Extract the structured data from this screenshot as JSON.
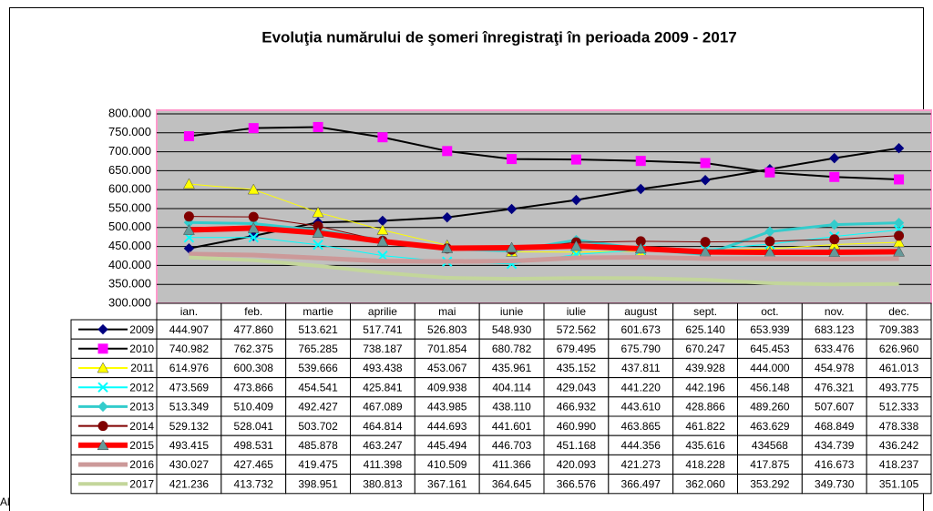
{
  "chart_data": {
    "type": "line",
    "title": "Evoluţia numărului de şomeri înregistraţi în perioada 2009 - 2017",
    "side_text": "Al",
    "categories": [
      "ian.",
      "feb.",
      "martie",
      "aprilie",
      "mai",
      "iunie",
      "iulie",
      "august",
      "sept.",
      "oct.",
      "nov.",
      "dec."
    ],
    "ylim": [
      300000,
      800000
    ],
    "yticks": [
      {
        "value": 300000,
        "label": "300.000"
      },
      {
        "value": 350000,
        "label": "350.000"
      },
      {
        "value": 400000,
        "label": "400.000"
      },
      {
        "value": 450000,
        "label": "450.000"
      },
      {
        "value": 500000,
        "label": "500.000"
      },
      {
        "value": 550000,
        "label": "550.000"
      },
      {
        "value": 600000,
        "label": "600.000"
      },
      {
        "value": 650000,
        "label": "650.000"
      },
      {
        "value": 700000,
        "label": "700.000"
      },
      {
        "value": 750000,
        "label": "750.000"
      },
      {
        "value": 800000,
        "label": "800.000"
      }
    ],
    "grid": true,
    "plot_background": "#c0c0c0",
    "series": [
      {
        "name": "2009",
        "color": "#000000",
        "marker_color": "#000080",
        "marker": "diamond",
        "line_width": 2,
        "values": [
          444907,
          477860,
          513621,
          517741,
          526803,
          548930,
          572562,
          601673,
          625140,
          653939,
          683123,
          709383
        ],
        "value_labels": [
          "444.907",
          "477.860",
          "513.621",
          "517.741",
          "526.803",
          "548.930",
          "572.562",
          "601.673",
          "625.140",
          "653.939",
          "683.123",
          "709.383"
        ]
      },
      {
        "name": "2010",
        "color": "#000000",
        "marker_color": "#ff00ff",
        "marker": "square",
        "line_width": 2,
        "values": [
          740982,
          762375,
          765285,
          738187,
          701854,
          680782,
          679495,
          675790,
          670247,
          645453,
          633476,
          626960
        ],
        "value_labels": [
          "740.982",
          "762.375",
          "765.285",
          "738.187",
          "701.854",
          "680.782",
          "679.495",
          "675.790",
          "670.247",
          "645.453",
          "633.476",
          "626.960"
        ]
      },
      {
        "name": "2011",
        "color": "#ffff00",
        "marker_color": "#ffff00",
        "marker": "triangle",
        "line_width": 1,
        "values": [
          614976,
          600308,
          539666,
          493438,
          453067,
          435961,
          435152,
          437811,
          439928,
          444000,
          454978,
          461013
        ],
        "value_labels": [
          "614.976",
          "600.308",
          "539.666",
          "493.438",
          "453.067",
          "435.961",
          "435.152",
          "437.811",
          "439.928",
          "444.000",
          "454.978",
          "461.013"
        ]
      },
      {
        "name": "2012",
        "color": "#00ffff",
        "marker_color": "#00ffff",
        "marker": "x",
        "line_width": 1,
        "values": [
          473569,
          473866,
          454541,
          425841,
          409938,
          404114,
          429043,
          441220,
          442196,
          456148,
          476321,
          493775
        ],
        "value_labels": [
          "473.569",
          "473.866",
          "454.541",
          "425.841",
          "409.938",
          "404.114",
          "429.043",
          "441.220",
          "442.196",
          "456.148",
          "476.321",
          "493.775"
        ]
      },
      {
        "name": "2013",
        "color": "#33cccc",
        "marker_color": "#33cccc",
        "marker": "diamond",
        "line_width": 3,
        "values": [
          513349,
          510409,
          492427,
          467089,
          443985,
          438110,
          466932,
          443610,
          428866,
          489260,
          507607,
          512333
        ],
        "value_labels": [
          "513.349",
          "510.409",
          "492.427",
          "467.089",
          "443.985",
          "438.110",
          "466.932",
          "443.610",
          "428.866",
          "489.260",
          "507.607",
          "512.333"
        ]
      },
      {
        "name": "2014",
        "color": "#800000",
        "marker_color": "#800000",
        "marker": "circle",
        "line_width": 1,
        "values": [
          529132,
          528041,
          503702,
          464814,
          444693,
          441601,
          460990,
          463865,
          461822,
          463629,
          468849,
          478338
        ],
        "value_labels": [
          "529.132",
          "528.041",
          "503.702",
          "464.814",
          "444.693",
          "441.601",
          "460.990",
          "463.865",
          "461.822",
          "463.629",
          "468.849",
          "478.338"
        ]
      },
      {
        "name": "2015",
        "color": "#ff0000",
        "marker_color": "#669999",
        "marker": "triangle",
        "line_width": 6,
        "values": [
          493415,
          498531,
          485878,
          463247,
          445494,
          446703,
          451168,
          444356,
          435616,
          434568,
          434739,
          436242
        ],
        "value_labels": [
          "493.415",
          "498.531",
          "485.878",
          "463.247",
          "445.494",
          "446.703",
          "451.168",
          "444.356",
          "435.616",
          "434568",
          "434.739",
          "436.242"
        ]
      },
      {
        "name": "2016",
        "color": "#cc9999",
        "marker_color": "#cc9999",
        "marker": "none",
        "line_width": 5,
        "values": [
          430027,
          427465,
          419475,
          411398,
          410509,
          411366,
          420093,
          421273,
          418228,
          417875,
          416673,
          418237
        ],
        "value_labels": [
          "430.027",
          "427.465",
          "419.475",
          "411.398",
          "410.509",
          "411.366",
          "420.093",
          "421.273",
          "418.228",
          "417.875",
          "416.673",
          "418.237"
        ]
      },
      {
        "name": "2017",
        "color": "#c3d69b",
        "marker_color": "#c3d69b",
        "marker": "none",
        "line_width": 4,
        "values": [
          421236,
          413732,
          398951,
          380813,
          367161,
          364645,
          366576,
          366497,
          362060,
          353292,
          349730,
          351105
        ],
        "value_labels": [
          "421.236",
          "413.732",
          "398.951",
          "380.813",
          "367.161",
          "364.645",
          "366.576",
          "366.497",
          "362.060",
          "353.292",
          "349.730",
          "351.105"
        ]
      }
    ]
  }
}
